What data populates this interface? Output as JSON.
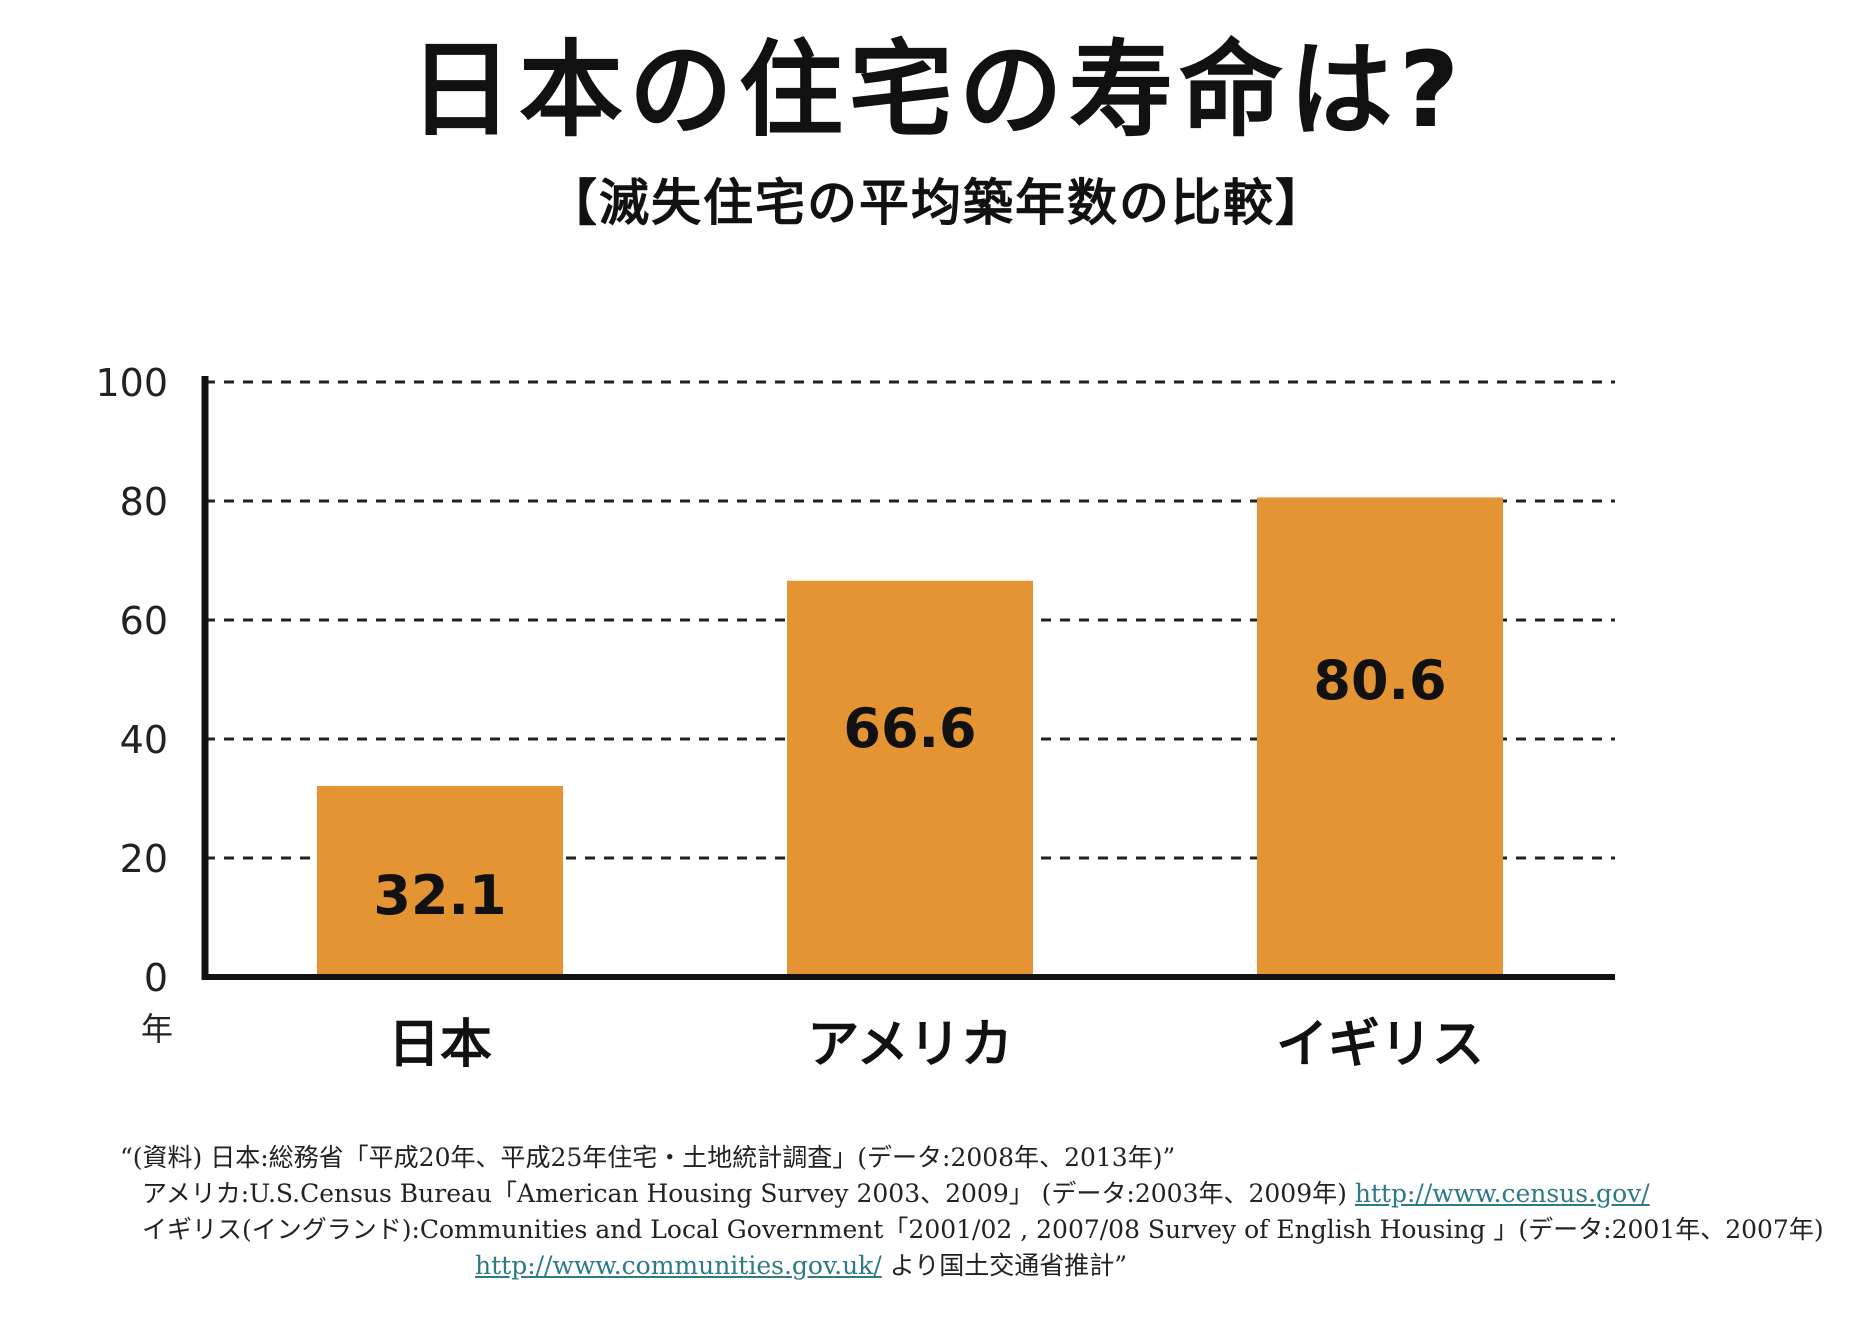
{
  "header": {
    "title": "日本の住宅の寿命は?",
    "subtitle": "【滅失住宅の平均築年数の比較】"
  },
  "chart_data": {
    "type": "bar",
    "categories": [
      "日本",
      "アメリカ",
      "イギリス"
    ],
    "values": [
      32.1,
      66.6,
      80.6
    ],
    "value_labels": [
      "32.1",
      "66.6",
      "80.6"
    ],
    "yticks": [
      0,
      20,
      40,
      60,
      80,
      100
    ],
    "ylim": [
      0,
      100
    ],
    "ylabel": "年",
    "grid": true,
    "bar_color": "#e49433"
  },
  "sources": {
    "line1": "“(資料) 日本:総務省「平成20年、平成25年住宅・土地統計調査」(データ:2008年、2013年)”",
    "line2_text": "アメリカ:U.S.Census Bureau「American Housing Survey 2003、2009」 (データ:2003年、2009年)",
    "line2_link": "http://www.census.gov/",
    "line3": "イギリス(イングランド):Communities and Local Government「2001/02 , 2007/08 Survey of English Housing 」(データ:2001年、2007年)",
    "line4_link": "http://www.communities.gov.uk/",
    "line4_text": "より国土交通省推計”"
  }
}
